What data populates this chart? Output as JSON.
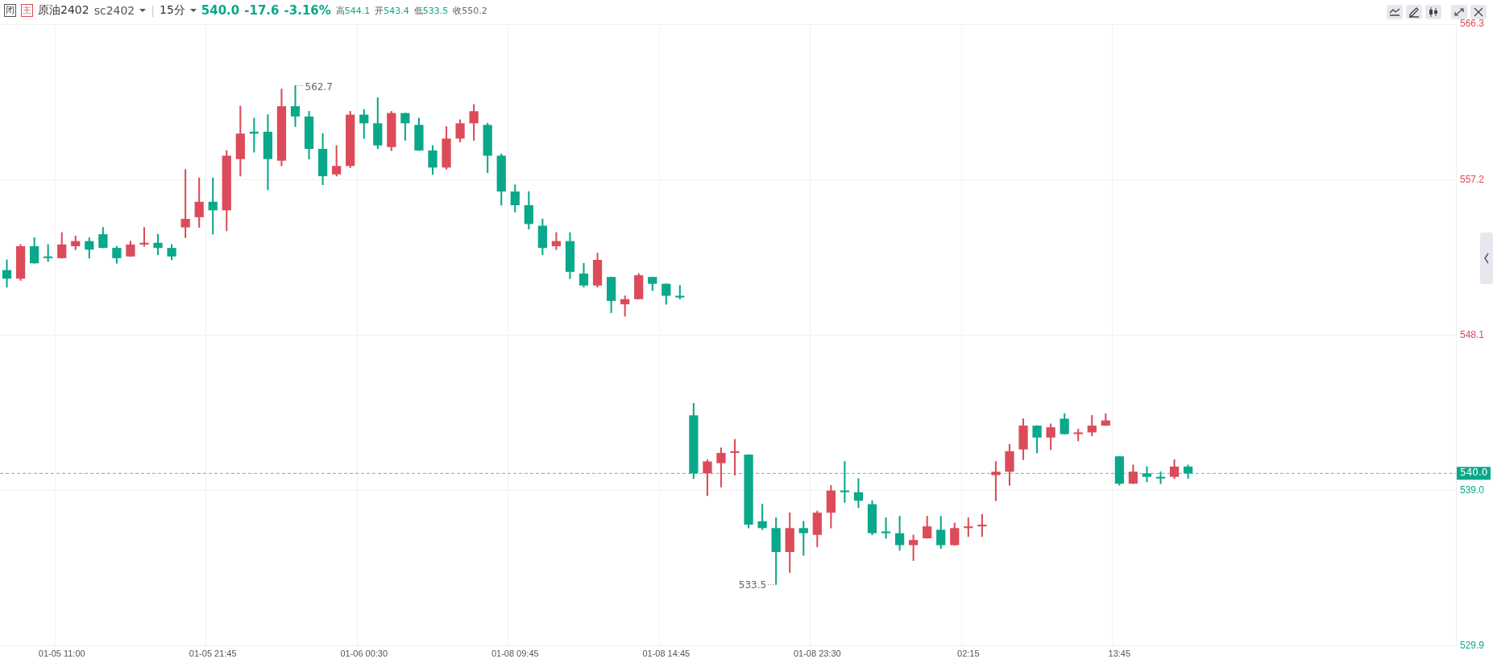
{
  "chart_data": {
    "type": "candlestick",
    "title": "原油2402",
    "subtitle": "sc2402",
    "annotations": [
      "闭",
      "主",
      "|",
      "15分",
      "540.0",
      "-17.6",
      "-3.16%",
      "高544.1",
      "开543.4",
      "低533.5",
      "收550.2",
      "562.7",
      "533.5"
    ],
    "categories": [
      null,
      null,
      null,
      null,
      "01-05 11:00",
      null,
      null,
      null,
      null,
      null,
      null,
      null,
      null,
      null,
      null,
      "01-05 21:45",
      null,
      null,
      null,
      null,
      null,
      null,
      null,
      null,
      null,
      null,
      "01-06 00:30",
      null,
      null,
      null,
      null,
      null,
      null,
      null,
      null,
      null,
      null,
      "01-08 09:45",
      null,
      null,
      null,
      null,
      null,
      null,
      null,
      null,
      null,
      null,
      "01-08 14:45",
      null,
      null,
      null,
      null,
      null,
      null,
      null,
      null,
      null,
      null,
      "01-08 23:30",
      null,
      null,
      null,
      null,
      null,
      null,
      null,
      null,
      null,
      null,
      "02:15",
      null,
      null,
      null,
      null,
      null,
      null,
      null,
      null,
      null,
      null,
      "13:45",
      null,
      null,
      null,
      null,
      null,
      null,
      null,
      null,
      null,
      null,
      null,
      null,
      null,
      null,
      null,
      null,
      null,
      null,
      null,
      null,
      null,
      null,
      null,
      null
    ],
    "ohlc": [
      [
        551.9,
        552.5,
        550.9,
        551.4
      ],
      [
        551.4,
        553.4,
        551.3,
        553.3
      ],
      [
        553.3,
        553.8,
        552.3,
        552.3
      ],
      [
        552.7,
        553.4,
        552.4,
        552.6
      ],
      [
        552.6,
        554.1,
        552.6,
        553.4
      ],
      [
        553.3,
        553.9,
        553.1,
        553.6
      ],
      [
        553.6,
        553.8,
        552.6,
        553.1
      ],
      [
        554.0,
        554.4,
        553.2,
        553.2
      ],
      [
        553.2,
        553.3,
        552.3,
        552.6
      ],
      [
        552.7,
        553.6,
        552.7,
        553.4
      ],
      [
        553.4,
        554.4,
        553.3,
        553.5
      ],
      [
        553.5,
        554.0,
        552.8,
        553.2
      ],
      [
        553.2,
        553.4,
        552.5,
        552.7
      ],
      [
        554.4,
        557.8,
        553.8,
        554.9
      ],
      [
        555.0,
        557.3,
        554.4,
        555.9
      ],
      [
        555.9,
        557.3,
        554.0,
        555.4
      ],
      [
        555.4,
        558.9,
        554.2,
        558.6
      ],
      [
        558.4,
        561.5,
        557.4,
        559.9
      ],
      [
        560.0,
        560.8,
        558.8,
        559.9
      ],
      [
        560.0,
        561.0,
        556.6,
        558.4
      ],
      [
        558.3,
        562.5,
        558.0,
        561.5
      ],
      [
        561.5,
        562.7,
        560.3,
        560.9
      ],
      [
        560.9,
        561.2,
        558.4,
        559.0
      ],
      [
        559.0,
        559.9,
        556.9,
        557.4
      ],
      [
        557.5,
        559.2,
        557.4,
        558.0
      ],
      [
        558.0,
        561.2,
        557.9,
        561.0
      ],
      [
        561.0,
        561.3,
        559.6,
        560.5
      ],
      [
        560.5,
        562.0,
        559.0,
        559.2
      ],
      [
        559.1,
        561.2,
        558.9,
        561.1
      ],
      [
        561.1,
        561.1,
        559.5,
        560.5
      ],
      [
        560.4,
        560.8,
        558.9,
        558.9
      ],
      [
        558.9,
        559.2,
        557.5,
        557.9
      ],
      [
        557.9,
        560.3,
        557.8,
        559.6
      ],
      [
        559.6,
        560.7,
        559.4,
        560.5
      ],
      [
        560.5,
        561.6,
        559.5,
        561.2
      ],
      [
        560.4,
        560.5,
        557.6,
        558.6
      ],
      [
        558.6,
        558.7,
        555.7,
        556.5
      ],
      [
        556.5,
        556.9,
        555.3,
        555.7
      ],
      [
        555.7,
        556.5,
        554.3,
        554.6
      ],
      [
        554.5,
        554.9,
        552.8,
        553.2
      ],
      [
        553.3,
        554.1,
        553.1,
        553.6
      ],
      [
        553.6,
        554.1,
        551.4,
        551.8
      ],
      [
        551.7,
        552.3,
        550.9,
        551.0
      ],
      [
        551.0,
        552.9,
        550.9,
        552.5
      ],
      [
        551.5,
        551.5,
        549.4,
        550.1
      ],
      [
        549.9,
        550.4,
        549.2,
        550.2
      ],
      [
        550.2,
        551.7,
        550.2,
        551.6
      ],
      [
        551.5,
        551.5,
        550.7,
        551.1
      ],
      [
        551.1,
        551.1,
        549.9,
        550.4
      ],
      [
        550.4,
        551.0,
        550.2,
        550.3
      ],
      [
        543.4,
        544.1,
        539.7,
        540.0
      ],
      [
        540.0,
        540.8,
        538.7,
        540.7
      ],
      [
        540.6,
        541.5,
        539.2,
        541.2
      ],
      [
        541.2,
        542.0,
        539.9,
        541.3
      ],
      [
        541.1,
        541.1,
        536.8,
        537.0
      ],
      [
        537.2,
        538.2,
        536.7,
        536.8
      ],
      [
        536.8,
        537.4,
        533.5,
        535.4
      ],
      [
        535.4,
        537.7,
        534.2,
        536.8
      ],
      [
        536.8,
        537.2,
        535.2,
        536.5
      ],
      [
        536.4,
        537.8,
        535.7,
        537.7
      ],
      [
        537.7,
        539.3,
        536.8,
        539.0
      ],
      [
        539.0,
        540.7,
        538.3,
        538.9
      ],
      [
        538.9,
        539.7,
        538.0,
        538.4
      ],
      [
        538.2,
        538.4,
        536.4,
        536.5
      ],
      [
        536.6,
        537.4,
        536.2,
        536.5
      ],
      [
        536.5,
        537.5,
        535.5,
        535.8
      ],
      [
        535.8,
        536.4,
        534.9,
        536.1
      ],
      [
        536.2,
        537.5,
        536.2,
        536.9
      ],
      [
        536.7,
        537.5,
        535.6,
        535.8
      ],
      [
        535.8,
        537.1,
        535.8,
        536.8
      ],
      [
        536.8,
        537.4,
        536.3,
        536.9
      ],
      [
        536.9,
        537.6,
        536.3,
        537.0
      ],
      [
        539.9,
        540.7,
        538.4,
        540.1
      ],
      [
        540.1,
        541.7,
        539.3,
        541.3
      ],
      [
        541.4,
        543.2,
        540.8,
        542.8
      ],
      [
        542.8,
        542.8,
        541.2,
        542.1
      ],
      [
        542.1,
        542.9,
        541.4,
        542.7
      ],
      [
        543.2,
        543.5,
        542.3,
        542.3
      ],
      [
        542.3,
        542.6,
        541.9,
        542.4
      ],
      [
        542.4,
        543.4,
        542.2,
        542.8
      ],
      [
        542.8,
        543.5,
        542.8,
        543.1
      ],
      [
        541.0,
        541.0,
        539.3,
        539.4
      ],
      [
        539.4,
        540.5,
        539.4,
        540.1
      ],
      [
        540.0,
        540.4,
        539.5,
        539.8
      ],
      [
        539.8,
        540.1,
        539.4,
        539.7
      ],
      [
        539.8,
        540.8,
        539.7,
        540.4
      ],
      [
        540.4,
        540.5,
        539.7,
        540.0
      ],
      null,
      null,
      null,
      null,
      null,
      null,
      null,
      null,
      null,
      null,
      null,
      null,
      null,
      null,
      null,
      null,
      null,
      null,
      null
    ],
    "colors": [
      "#0aa88a",
      "#dc4b59",
      "#0aa88a",
      "#0aa88a",
      "#dc4b59",
      "#dc4b59",
      "#0aa88a",
      "#0aa88a",
      "#0aa88a",
      "#dc4b59",
      "#dc4b59",
      "#0aa88a",
      "#0aa88a",
      "#dc4b59",
      "#dc4b59",
      "#0aa88a",
      "#dc4b59",
      "#dc4b59",
      "#0aa88a",
      "#0aa88a",
      "#dc4b59",
      "#0aa88a",
      "#0aa88a",
      "#0aa88a",
      "#dc4b59",
      "#dc4b59",
      "#0aa88a",
      "#0aa88a",
      "#dc4b59",
      "#0aa88a",
      "#0aa88a",
      "#0aa88a",
      "#dc4b59",
      "#dc4b59",
      "#dc4b59",
      "#0aa88a",
      "#0aa88a",
      "#0aa88a",
      "#0aa88a",
      "#0aa88a",
      "#dc4b59",
      "#0aa88a",
      "#0aa88a",
      "#dc4b59",
      "#0aa88a",
      "#dc4b59",
      "#dc4b59",
      "#0aa88a",
      "#0aa88a",
      "#0aa88a",
      "#0aa88a",
      "#dc4b59",
      "#dc4b59",
      "#dc4b59",
      "#0aa88a",
      "#0aa88a",
      "#0aa88a",
      "#dc4b59",
      "#0aa88a",
      "#dc4b59",
      "#dc4b59",
      "#0aa88a",
      "#0aa88a",
      "#0aa88a",
      "#0aa88a",
      "#0aa88a",
      "#dc4b59",
      "#dc4b59",
      "#0aa88a",
      "#dc4b59",
      "#dc4b59",
      "#dc4b59",
      "#dc4b59",
      "#dc4b59",
      "#dc4b59",
      "#0aa88a",
      "#dc4b59",
      "#0aa88a",
      "#dc4b59",
      "#dc4b59",
      "#dc4b59",
      "#0aa88a",
      "#dc4b59",
      "#0aa88a",
      "#0aa88a",
      "#dc4b59",
      "#0aa88a",
      null,
      null,
      null,
      null,
      null,
      null,
      null,
      null,
      null,
      null,
      null,
      null,
      null,
      null,
      null,
      null,
      null,
      null,
      null
    ],
    "ylim": [
      529.9,
      566.3
    ],
    "yticks": [
      529.9,
      {
        "value": 539.0,
        "label": "539.0"
      },
      548.1,
      557.2,
      566.3
    ],
    "ref_lines": [
      {
        "axis": "y",
        "value": 540.0,
        "label": "540.0",
        "color": "#0aa88a",
        "line_style": "dashed"
      }
    ],
    "grid": true,
    "legend": false
  }
}
